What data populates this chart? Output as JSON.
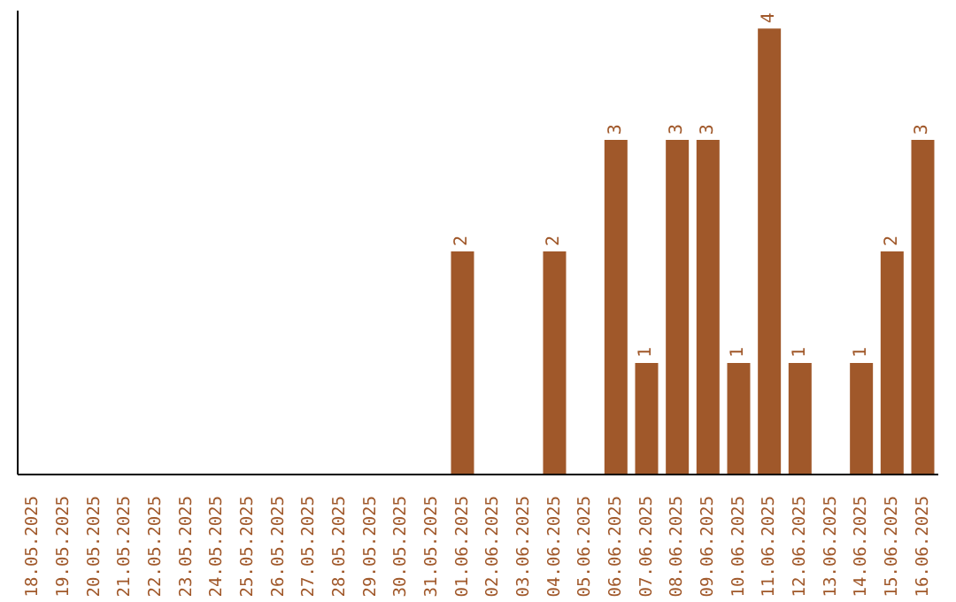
{
  "chart_data": {
    "type": "bar",
    "categories": [
      "18.05.2025",
      "19.05.2025",
      "20.05.2025",
      "21.05.2025",
      "22.05.2025",
      "23.05.2025",
      "24.05.2025",
      "25.05.2025",
      "26.05.2025",
      "27.05.2025",
      "28.05.2025",
      "29.05.2025",
      "30.05.2025",
      "31.05.2025",
      "01.06.2025",
      "02.06.2025",
      "03.06.2025",
      "04.06.2025",
      "05.06.2025",
      "06.06.2025",
      "07.06.2025",
      "08.06.2025",
      "09.06.2025",
      "10.06.2025",
      "11.06.2025",
      "12.06.2025",
      "13.06.2025",
      "14.06.2025",
      "15.06.2025",
      "16.06.2025"
    ],
    "values": [
      null,
      null,
      null,
      null,
      null,
      null,
      null,
      null,
      null,
      null,
      null,
      null,
      null,
      null,
      2,
      null,
      null,
      2,
      null,
      3,
      1,
      3,
      3,
      1,
      4,
      1,
      null,
      1,
      2,
      3
    ],
    "data_labels": true,
    "color": "#a0582a",
    "tick_labels": "x"
  }
}
